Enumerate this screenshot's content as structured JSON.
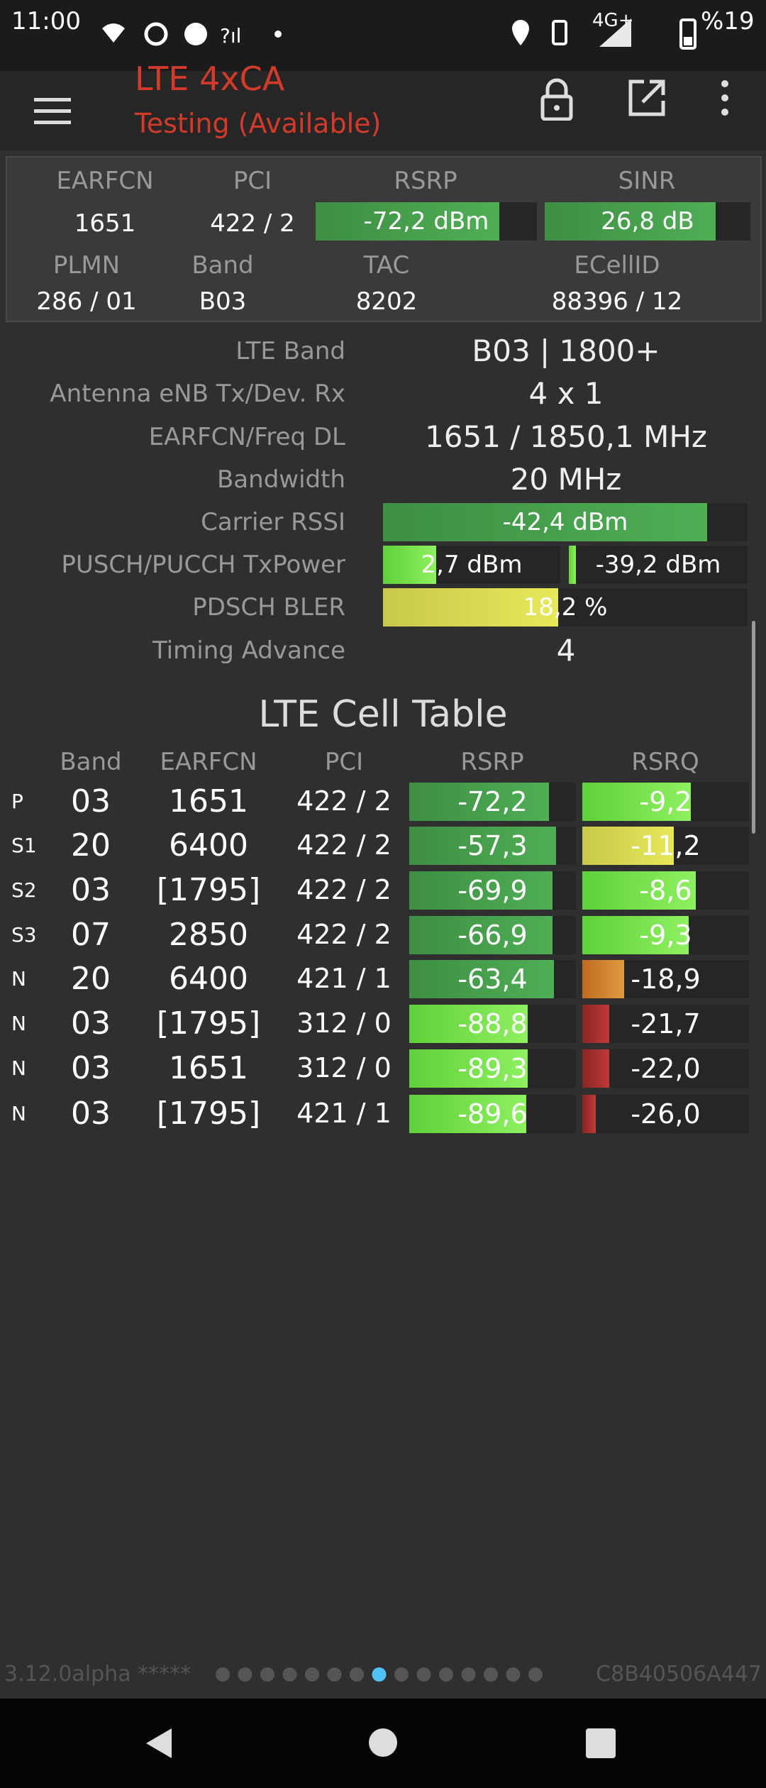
{
  "status_bar": {
    "time": "11:00",
    "network": "4G+",
    "battery": "%19"
  },
  "app_bar": {
    "title": "LTE 4xCA",
    "subtitle": "Testing (Available)"
  },
  "summary": {
    "headers1": [
      "EARFCN",
      "PCI",
      "RSRP",
      "SINR"
    ],
    "values1": [
      "1651",
      "422 / 2",
      "-72,2 dBm",
      "26,8 dB"
    ],
    "headers2": [
      "PLMN",
      "Band",
      "TAC",
      "ECellID"
    ],
    "values2": [
      "286 / 01",
      "B03",
      "8202",
      "88396 / 12"
    ]
  },
  "details": [
    {
      "label": "LTE Band",
      "values": [
        "B03 | 1800+"
      ]
    },
    {
      "label": "Antenna eNB Tx/Dev. Rx",
      "values": [
        "4 x 1"
      ]
    },
    {
      "label": "EARFCN/Freq DL",
      "values": [
        "1651 / 1850,1 MHz"
      ]
    },
    {
      "label": "Bandwidth",
      "values": [
        "20 MHz"
      ]
    },
    {
      "label": "Carrier RSSI",
      "values": [
        "-42,4 dBm"
      ]
    },
    {
      "label": "PUSCH/PUCCH TxPower",
      "values": [
        "2,7 dBm",
        "-39,2 dBm"
      ]
    },
    {
      "label": "PDSCH BLER",
      "values": [
        "18,2 %"
      ]
    },
    {
      "label": "Timing Advance",
      "values": [
        "4"
      ]
    }
  ],
  "cell_table": {
    "title": "LTE Cell Table",
    "columns": [
      "Band",
      "EARFCN",
      "PCI",
      "RSRP",
      "RSRQ"
    ],
    "rows": [
      [
        "P",
        "03",
        "1651",
        "422 / 2",
        "-72,2",
        "-9,2"
      ],
      [
        "S1",
        "20",
        "6400",
        "422 / 2",
        "-57,3",
        "-11,2"
      ],
      [
        "S2",
        "03",
        "[1795]",
        "422 / 2",
        "-69,9",
        "-8,6"
      ],
      [
        "S3",
        "07",
        "2850",
        "422 / 2",
        "-66,9",
        "-9,3"
      ],
      [
        "N",
        "20",
        "6400",
        "421 / 1",
        "-63,4",
        "-18,9"
      ],
      [
        "N",
        "03",
        "[1795]",
        "312 / 0",
        "-88,8",
        "-21,7"
      ],
      [
        "N",
        "03",
        "1651",
        "312 / 0",
        "-89,3",
        "-22,0"
      ],
      [
        "N",
        "03",
        "[1795]",
        "421 / 1",
        "-89,6",
        "-26,0"
      ]
    ]
  },
  "footer": {
    "version": "3.12.0alpha *****",
    "id": "C8B40506A447"
  }
}
